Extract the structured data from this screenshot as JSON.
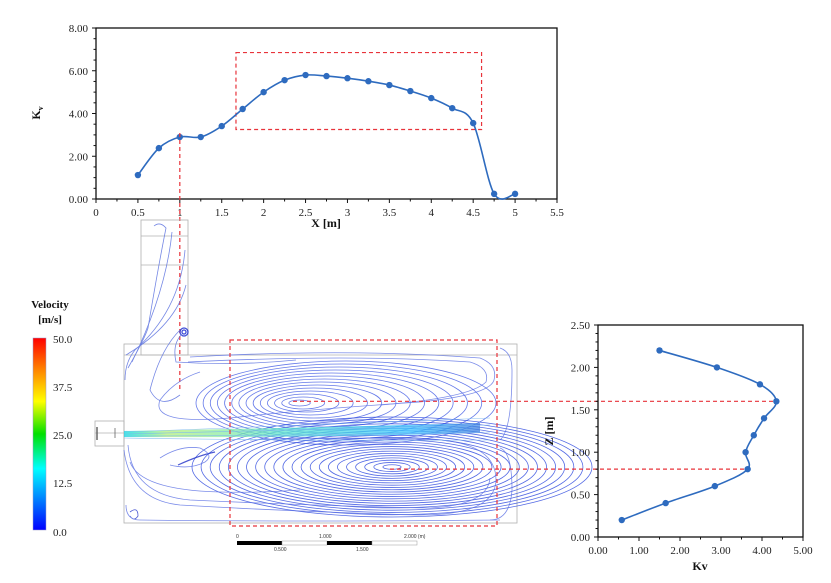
{
  "chart_data": [
    {
      "id": "kv_vs_x",
      "type": "line",
      "title": "",
      "xlabel": "X [m]",
      "ylabel": "Kv",
      "xlim": [
        0,
        5.5
      ],
      "ylim": [
        0,
        8
      ],
      "xticks": [
        "0",
        "0.5",
        "1",
        "1.5",
        "2",
        "2.5",
        "3",
        "3.5",
        "4",
        "4.5",
        "5",
        "5.5"
      ],
      "xtick_values": [
        0,
        0.5,
        1,
        1.5,
        2,
        2.5,
        3,
        3.5,
        4,
        4.5,
        5,
        5.5
      ],
      "yticks": [
        "0.00",
        "2.00",
        "4.00",
        "6.00",
        "8.00"
      ],
      "ytick_values": [
        0,
        2,
        4,
        6,
        8
      ],
      "grid": false,
      "series": [
        {
          "name": "Kv",
          "color": "#2e6bbf",
          "x": [
            0.5,
            0.75,
            1.0,
            1.25,
            1.5,
            1.75,
            2.0,
            2.25,
            2.5,
            2.75,
            3.0,
            3.25,
            3.5,
            3.75,
            4.0,
            4.25,
            4.5,
            4.75,
            5.0
          ],
          "y": [
            1.12,
            2.38,
            2.9,
            2.9,
            3.41,
            4.21,
            5.0,
            5.56,
            5.8,
            5.75,
            5.65,
            5.51,
            5.33,
            5.05,
            4.72,
            4.25,
            3.55,
            0.24,
            0.24
          ]
        }
      ],
      "annotations": {
        "highlight_box_x": [
          1.67,
          4.6
        ],
        "highlight_box_y": [
          3.25,
          6.85
        ],
        "marker_line_x": 1.0,
        "marker_color": "#e8333a"
      }
    },
    {
      "id": "z_vs_kv",
      "type": "line",
      "title": "",
      "xlabel": "Kv",
      "ylabel": "Z [m]",
      "xlim": [
        0,
        5
      ],
      "ylim": [
        0,
        2.5
      ],
      "xticks": [
        "0.00",
        "1.00",
        "2.00",
        "3.00",
        "4.00",
        "5.00"
      ],
      "xtick_values": [
        0,
        1,
        2,
        3,
        4,
        5
      ],
      "yticks": [
        "0.00",
        "0.50",
        "1.00",
        "1.50",
        "2.00",
        "2.50"
      ],
      "ytick_values": [
        0,
        0.5,
        1,
        1.5,
        2,
        2.5
      ],
      "grid": false,
      "series": [
        {
          "name": "Kv",
          "color": "#2e6bbf",
          "x": [
            1.5,
            2.9,
            3.95,
            4.35,
            4.05,
            3.8,
            3.6,
            3.65,
            2.85,
            1.65,
            0.58
          ],
          "y": [
            2.2,
            2.0,
            1.8,
            1.6,
            1.4,
            1.2,
            1.0,
            0.8,
            0.6,
            0.4,
            0.2
          ]
        }
      ],
      "annotations": {
        "marker_lines_z": [
          1.6,
          0.8
        ],
        "marker_color": "#e8333a"
      }
    }
  ],
  "velocity_legend": {
    "title_line1": "Velocity",
    "title_line2": "[m/s]",
    "labels": [
      "50.0",
      "37.5",
      "25.0",
      "12.5",
      "0.0"
    ],
    "min": 0.0,
    "max": 50.0,
    "colors": [
      "#ff0000",
      "#ff8800",
      "#ffff00",
      "#00e000",
      "#00ffff",
      "#0080ff",
      "#0000ff"
    ]
  },
  "scale_bar": {
    "top_labels": [
      "0",
      "1.000",
      "2.000 (m)"
    ],
    "bottom_labels": [
      "0.500",
      "1.500"
    ]
  },
  "cfd": {
    "streamline_color": "#3f5fe0",
    "jet_color": "#b4f07a",
    "outline_color": "#b0b0b0"
  }
}
